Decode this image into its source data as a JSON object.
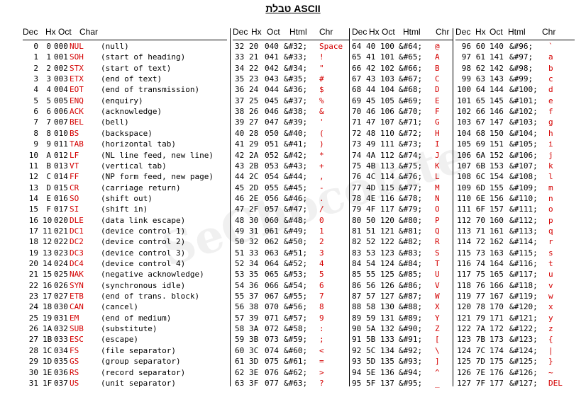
{
  "title": "טבלת ASCII",
  "watermark": "SeChocolate",
  "headers": {
    "g1": [
      "Dec",
      "Hx",
      "Oct",
      "Char"
    ],
    "g2": [
      "Dec",
      "Hx",
      "Oct",
      "Html",
      "Chr"
    ],
    "g3": [
      "Dec",
      "Hx",
      "Oct",
      "Html",
      "Chr"
    ],
    "g4": [
      "Dec",
      "Hx",
      "Oct",
      "Html",
      "Chr"
    ]
  },
  "control": [
    [
      "0",
      "0",
      "000",
      "NUL",
      "(null)"
    ],
    [
      "1",
      "1",
      "001",
      "SOH",
      "(start of heading)"
    ],
    [
      "2",
      "2",
      "002",
      "STX",
      "(start of text)"
    ],
    [
      "3",
      "3",
      "003",
      "ETX",
      "(end of text)"
    ],
    [
      "4",
      "4",
      "004",
      "EOT",
      "(end of transmission)"
    ],
    [
      "5",
      "5",
      "005",
      "ENQ",
      "(enquiry)"
    ],
    [
      "6",
      "6",
      "006",
      "ACK",
      "(acknowledge)"
    ],
    [
      "7",
      "7",
      "007",
      "BEL",
      "(bell)"
    ],
    [
      "8",
      "8",
      "010",
      "BS",
      "(backspace)"
    ],
    [
      "9",
      "9",
      "011",
      "TAB",
      "(horizontal tab)"
    ],
    [
      "10",
      "A",
      "012",
      "LF",
      "(NL line feed, new line)"
    ],
    [
      "11",
      "B",
      "013",
      "VT",
      "(vertical tab)"
    ],
    [
      "12",
      "C",
      "014",
      "FF",
      "(NP form feed, new page)"
    ],
    [
      "13",
      "D",
      "015",
      "CR",
      "(carriage return)"
    ],
    [
      "14",
      "E",
      "016",
      "SO",
      "(shift out)"
    ],
    [
      "15",
      "F",
      "017",
      "SI",
      "(shift in)"
    ],
    [
      "16",
      "10",
      "020",
      "DLE",
      "(data link escape)"
    ],
    [
      "17",
      "11",
      "021",
      "DC1",
      "(device control 1)"
    ],
    [
      "18",
      "12",
      "022",
      "DC2",
      "(device control 2)"
    ],
    [
      "19",
      "13",
      "023",
      "DC3",
      "(device control 3)"
    ],
    [
      "20",
      "14",
      "024",
      "DC4",
      "(device control 4)"
    ],
    [
      "21",
      "15",
      "025",
      "NAK",
      "(negative acknowledge)"
    ],
    [
      "22",
      "16",
      "026",
      "SYN",
      "(synchronous idle)"
    ],
    [
      "23",
      "17",
      "027",
      "ETB",
      "(end of trans. block)"
    ],
    [
      "24",
      "18",
      "030",
      "CAN",
      "(cancel)"
    ],
    [
      "25",
      "19",
      "031",
      "EM",
      "(end of medium)"
    ],
    [
      "26",
      "1A",
      "032",
      "SUB",
      "(substitute)"
    ],
    [
      "27",
      "1B",
      "033",
      "ESC",
      "(escape)"
    ],
    [
      "28",
      "1C",
      "034",
      "FS",
      "(file separator)"
    ],
    [
      "29",
      "1D",
      "035",
      "GS",
      "(group separator)"
    ],
    [
      "30",
      "1E",
      "036",
      "RS",
      "(record separator)"
    ],
    [
      "31",
      "1F",
      "037",
      "US",
      "(unit separator)"
    ]
  ],
  "printable1": [
    [
      "32",
      "20",
      "040",
      "&#32;",
      "Space"
    ],
    [
      "33",
      "21",
      "041",
      "&#33;",
      "!"
    ],
    [
      "34",
      "22",
      "042",
      "&#34;",
      "\""
    ],
    [
      "35",
      "23",
      "043",
      "&#35;",
      "#"
    ],
    [
      "36",
      "24",
      "044",
      "&#36;",
      "$"
    ],
    [
      "37",
      "25",
      "045",
      "&#37;",
      "%"
    ],
    [
      "38",
      "26",
      "046",
      "&#38;",
      "&"
    ],
    [
      "39",
      "27",
      "047",
      "&#39;",
      "'"
    ],
    [
      "40",
      "28",
      "050",
      "&#40;",
      "("
    ],
    [
      "41",
      "29",
      "051",
      "&#41;",
      ")"
    ],
    [
      "42",
      "2A",
      "052",
      "&#42;",
      "*"
    ],
    [
      "43",
      "2B",
      "053",
      "&#43;",
      "+"
    ],
    [
      "44",
      "2C",
      "054",
      "&#44;",
      ","
    ],
    [
      "45",
      "2D",
      "055",
      "&#45;",
      "-"
    ],
    [
      "46",
      "2E",
      "056",
      "&#46;",
      "."
    ],
    [
      "47",
      "2F",
      "057",
      "&#47;",
      "/"
    ],
    [
      "48",
      "30",
      "060",
      "&#48;",
      "0"
    ],
    [
      "49",
      "31",
      "061",
      "&#49;",
      "1"
    ],
    [
      "50",
      "32",
      "062",
      "&#50;",
      "2"
    ],
    [
      "51",
      "33",
      "063",
      "&#51;",
      "3"
    ],
    [
      "52",
      "34",
      "064",
      "&#52;",
      "4"
    ],
    [
      "53",
      "35",
      "065",
      "&#53;",
      "5"
    ],
    [
      "54",
      "36",
      "066",
      "&#54;",
      "6"
    ],
    [
      "55",
      "37",
      "067",
      "&#55;",
      "7"
    ],
    [
      "56",
      "38",
      "070",
      "&#56;",
      "8"
    ],
    [
      "57",
      "39",
      "071",
      "&#57;",
      "9"
    ],
    [
      "58",
      "3A",
      "072",
      "&#58;",
      ":"
    ],
    [
      "59",
      "3B",
      "073",
      "&#59;",
      ";"
    ],
    [
      "60",
      "3C",
      "074",
      "&#60;",
      "<"
    ],
    [
      "61",
      "3D",
      "075",
      "&#61;",
      "="
    ],
    [
      "62",
      "3E",
      "076",
      "&#62;",
      ">"
    ],
    [
      "63",
      "3F",
      "077",
      "&#63;",
      "?"
    ]
  ],
  "printable2": [
    [
      "64",
      "40",
      "100",
      "&#64;",
      "@"
    ],
    [
      "65",
      "41",
      "101",
      "&#65;",
      "A"
    ],
    [
      "66",
      "42",
      "102",
      "&#66;",
      "B"
    ],
    [
      "67",
      "43",
      "103",
      "&#67;",
      "C"
    ],
    [
      "68",
      "44",
      "104",
      "&#68;",
      "D"
    ],
    [
      "69",
      "45",
      "105",
      "&#69;",
      "E"
    ],
    [
      "70",
      "46",
      "106",
      "&#70;",
      "F"
    ],
    [
      "71",
      "47",
      "107",
      "&#71;",
      "G"
    ],
    [
      "72",
      "48",
      "110",
      "&#72;",
      "H"
    ],
    [
      "73",
      "49",
      "111",
      "&#73;",
      "I"
    ],
    [
      "74",
      "4A",
      "112",
      "&#74;",
      "J"
    ],
    [
      "75",
      "4B",
      "113",
      "&#75;",
      "K"
    ],
    [
      "76",
      "4C",
      "114",
      "&#76;",
      "L"
    ],
    [
      "77",
      "4D",
      "115",
      "&#77;",
      "M"
    ],
    [
      "78",
      "4E",
      "116",
      "&#78;",
      "N"
    ],
    [
      "79",
      "4F",
      "117",
      "&#79;",
      "O"
    ],
    [
      "80",
      "50",
      "120",
      "&#80;",
      "P"
    ],
    [
      "81",
      "51",
      "121",
      "&#81;",
      "Q"
    ],
    [
      "82",
      "52",
      "122",
      "&#82;",
      "R"
    ],
    [
      "83",
      "53",
      "123",
      "&#83;",
      "S"
    ],
    [
      "84",
      "54",
      "124",
      "&#84;",
      "T"
    ],
    [
      "85",
      "55",
      "125",
      "&#85;",
      "U"
    ],
    [
      "86",
      "56",
      "126",
      "&#86;",
      "V"
    ],
    [
      "87",
      "57",
      "127",
      "&#87;",
      "W"
    ],
    [
      "88",
      "58",
      "130",
      "&#88;",
      "X"
    ],
    [
      "89",
      "59",
      "131",
      "&#89;",
      "Y"
    ],
    [
      "90",
      "5A",
      "132",
      "&#90;",
      "Z"
    ],
    [
      "91",
      "5B",
      "133",
      "&#91;",
      "["
    ],
    [
      "92",
      "5C",
      "134",
      "&#92;",
      "\\"
    ],
    [
      "93",
      "5D",
      "135",
      "&#93;",
      "]"
    ],
    [
      "94",
      "5E",
      "136",
      "&#94;",
      "^"
    ],
    [
      "95",
      "5F",
      "137",
      "&#95;",
      "_"
    ]
  ],
  "printable3": [
    [
      "96",
      "60",
      "140",
      "&#96;",
      "`"
    ],
    [
      "97",
      "61",
      "141",
      "&#97;",
      "a"
    ],
    [
      "98",
      "62",
      "142",
      "&#98;",
      "b"
    ],
    [
      "99",
      "63",
      "143",
      "&#99;",
      "c"
    ],
    [
      "100",
      "64",
      "144",
      "&#100;",
      "d"
    ],
    [
      "101",
      "65",
      "145",
      "&#101;",
      "e"
    ],
    [
      "102",
      "66",
      "146",
      "&#102;",
      "f"
    ],
    [
      "103",
      "67",
      "147",
      "&#103;",
      "g"
    ],
    [
      "104",
      "68",
      "150",
      "&#104;",
      "h"
    ],
    [
      "105",
      "69",
      "151",
      "&#105;",
      "i"
    ],
    [
      "106",
      "6A",
      "152",
      "&#106;",
      "j"
    ],
    [
      "107",
      "6B",
      "153",
      "&#107;",
      "k"
    ],
    [
      "108",
      "6C",
      "154",
      "&#108;",
      "l"
    ],
    [
      "109",
      "6D",
      "155",
      "&#109;",
      "m"
    ],
    [
      "110",
      "6E",
      "156",
      "&#110;",
      "n"
    ],
    [
      "111",
      "6F",
      "157",
      "&#111;",
      "o"
    ],
    [
      "112",
      "70",
      "160",
      "&#112;",
      "p"
    ],
    [
      "113",
      "71",
      "161",
      "&#113;",
      "q"
    ],
    [
      "114",
      "72",
      "162",
      "&#114;",
      "r"
    ],
    [
      "115",
      "73",
      "163",
      "&#115;",
      "s"
    ],
    [
      "116",
      "74",
      "164",
      "&#116;",
      "t"
    ],
    [
      "117",
      "75",
      "165",
      "&#117;",
      "u"
    ],
    [
      "118",
      "76",
      "166",
      "&#118;",
      "v"
    ],
    [
      "119",
      "77",
      "167",
      "&#119;",
      "w"
    ],
    [
      "120",
      "78",
      "170",
      "&#120;",
      "x"
    ],
    [
      "121",
      "79",
      "171",
      "&#121;",
      "y"
    ],
    [
      "122",
      "7A",
      "172",
      "&#122;",
      "z"
    ],
    [
      "123",
      "7B",
      "173",
      "&#123;",
      "{"
    ],
    [
      "124",
      "7C",
      "174",
      "&#124;",
      "|"
    ],
    [
      "125",
      "7D",
      "175",
      "&#125;",
      "}"
    ],
    [
      "126",
      "7E",
      "176",
      "&#126;",
      "~"
    ],
    [
      "127",
      "7F",
      "177",
      "&#127;",
      "DEL"
    ]
  ]
}
